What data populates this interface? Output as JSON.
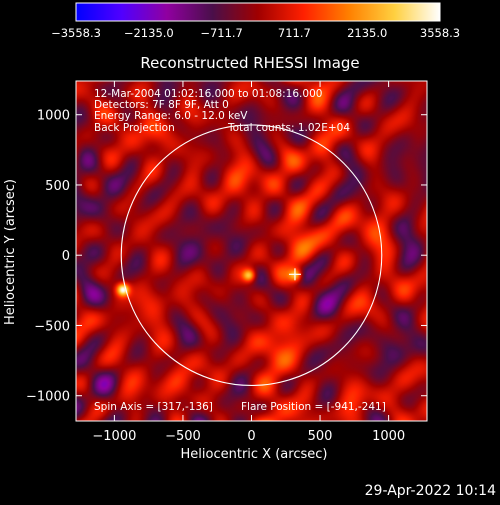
{
  "chart_data": {
    "type": "heatmap",
    "title": "Reconstructed RHESSI Image",
    "xlabel": "Heliocentric X (arcsec)",
    "ylabel": "Heliocentric Y (arcsec)",
    "xlim": [
      -1280,
      1280
    ],
    "ylim": [
      -1180,
      1240
    ],
    "x_ticks": [
      -1000,
      -500,
      0,
      500,
      1000
    ],
    "y_ticks": [
      -1000,
      -500,
      0,
      500,
      1000
    ],
    "x_tick_labels": [
      "−1000",
      "−500",
      "0",
      "500",
      "1000"
    ],
    "y_tick_labels": [
      "−1000",
      "−500",
      "0",
      "500",
      "1000"
    ],
    "colorbar": {
      "min": -3558.3,
      "max": 3558.3,
      "tick_values": [
        -3558.3,
        -2135.0,
        -711.7,
        711.7,
        2135.0,
        3558.3
      ],
      "tick_labels": [
        "−3558.3",
        "−2135.0",
        "−711.7",
        "711.7",
        "2135.0",
        "3558.3"
      ],
      "colors": [
        "#0000ff",
        "#5000ff",
        "#9000a0",
        "#4a0f4a",
        "#a00000",
        "#ff2000",
        "#ff8000",
        "#ffd040",
        "#ffffff"
      ]
    },
    "solar_limb_radius": 950,
    "flare_position": [
      -941,
      -241
    ],
    "spin_axis": [
      317,
      -136
    ],
    "sources": [
      {
        "x": -941,
        "y": -241,
        "value": 3558.3
      },
      {
        "x": -20,
        "y": -140,
        "value": 2800
      },
      {
        "x": 320,
        "y": -140,
        "value": 2500
      }
    ]
  },
  "annotations": {
    "time_range": "12-Mar-2004 01:02:16.000 to 01:08:16.000",
    "detectors": "Detectors: 7F 8F 9F, Att 0",
    "energy_range": "Energy Range: 6.0 - 12.0 keV",
    "method": "Back Projection",
    "total_counts": "Total counts: 1.02E+04",
    "spin_axis_text": "Spin Axis = [317,-136]",
    "flare_position_text": "Flare Position = [-941,-241]"
  },
  "footer": {
    "timestamp": "29-Apr-2022 10:14"
  }
}
